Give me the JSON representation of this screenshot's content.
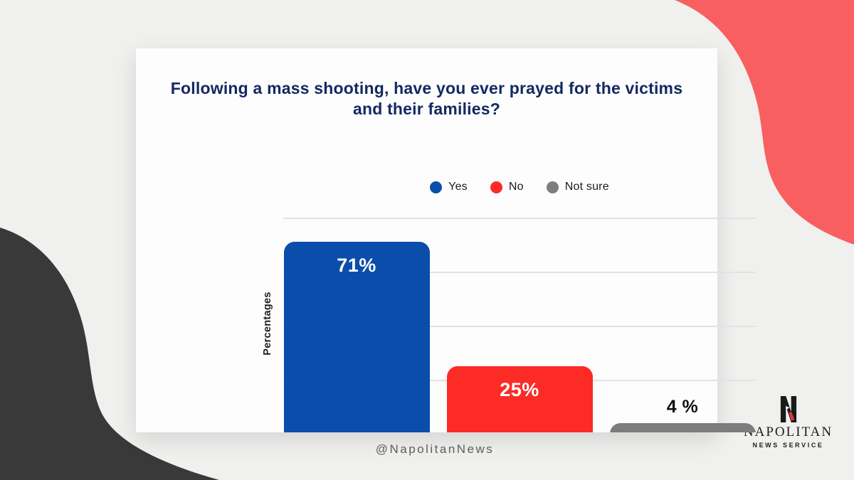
{
  "chart_data": {
    "type": "bar",
    "title": "Following a mass shooting, have you ever prayed for the victims and their families?",
    "categories": [
      "Yes",
      "No",
      "Not sure"
    ],
    "values": [
      71,
      25,
      4
    ],
    "value_labels": [
      "71%",
      "25%",
      "4 %"
    ],
    "colors": [
      "#0B4DAB",
      "#FC2B26",
      "#7D7D7D"
    ],
    "xlabel": "",
    "ylabel": "Percentages",
    "ylim": [
      0,
      80
    ],
    "grid": true,
    "grid_interval_pct": 20,
    "legend_position": "top",
    "value_label_placement": "inside bar for large values, above bar for small values"
  },
  "footer": {
    "handle": "@NapolitanNews"
  },
  "brand": {
    "monogram": "N",
    "name": "NAPOLITAN",
    "tagline": "NEWS SERVICE"
  },
  "theme": {
    "background": "#F0F0EF",
    "card": "#FDFDFE",
    "title_color": "#132961",
    "coral_blob": "#F95F60",
    "dark_blob": "#393939",
    "gridline": "#E2E2E2",
    "label_inside_color": "#FFFFFF",
    "label_outside_color": "#111111",
    "handle_color": "#5E5E5E",
    "brand_accent_red": "#E03A3C"
  }
}
